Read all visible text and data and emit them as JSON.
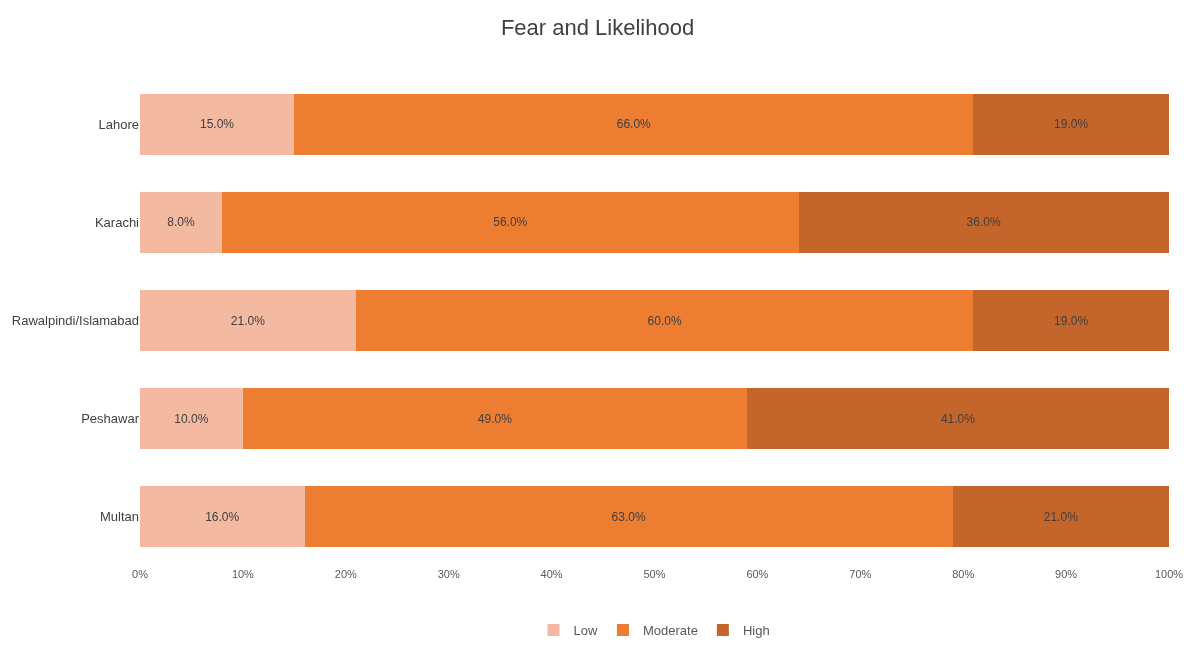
{
  "chart_data": {
    "type": "bar",
    "title": "Fear and Likelihood",
    "orientation": "horizontal",
    "stacked": true,
    "categories": [
      "Lahore",
      "Karachi",
      "Rawalpindi/Islamabad",
      "Peshawar",
      "Multan"
    ],
    "series": [
      {
        "name": "Low",
        "color": "#f3b9a1",
        "values": [
          15,
          8,
          21,
          10,
          16
        ],
        "value_labels": [
          "15.0%",
          "8.0%",
          "21.0%",
          "10.0%",
          "16.0%"
        ]
      },
      {
        "name": "Moderate",
        "color": "#ed7d31",
        "values": [
          66,
          56,
          60,
          49,
          63
        ],
        "value_labels": [
          "66.0%",
          "56.0%",
          "60.0%",
          "49.0%",
          "63.0%"
        ]
      },
      {
        "name": "High",
        "color": "#c4652b",
        "values": [
          19,
          36,
          19,
          41,
          21
        ],
        "value_labels": [
          "19.0%",
          "36.0%",
          "19.0%",
          "41.0%",
          "21.0%"
        ]
      }
    ],
    "xlim": [
      0,
      100
    ],
    "xticks": [
      {
        "value": 0,
        "label": "0%"
      },
      {
        "value": 10,
        "label": "10%"
      },
      {
        "value": 20,
        "label": "20%"
      },
      {
        "value": 30,
        "label": "30%"
      },
      {
        "value": 40,
        "label": "40%"
      },
      {
        "value": 50,
        "label": "50%"
      },
      {
        "value": 60,
        "label": "60%"
      },
      {
        "value": 70,
        "label": "70%"
      },
      {
        "value": 80,
        "label": "80%"
      },
      {
        "value": 90,
        "label": "90%"
      },
      {
        "value": 100,
        "label": "100%"
      }
    ],
    "legend": "bottom"
  }
}
